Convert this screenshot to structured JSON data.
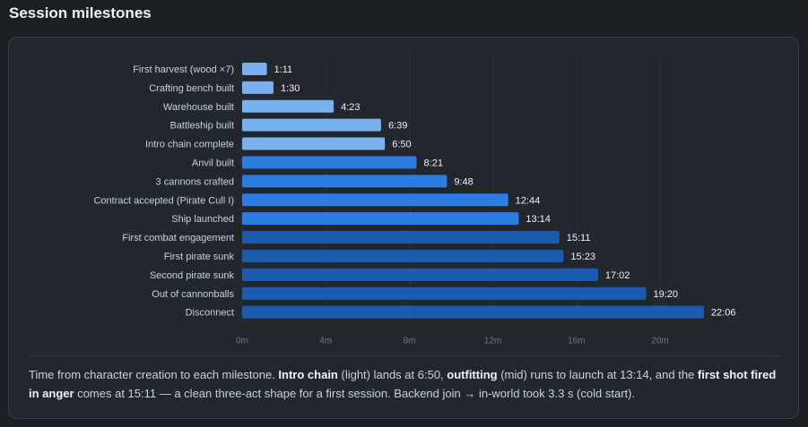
{
  "page": {
    "title": "Session milestones"
  },
  "colors": {
    "light": "#79b0f0",
    "mid": "#2b7de0",
    "dark": "#1c5cb0"
  },
  "chart_data": {
    "type": "bar",
    "orientation": "horizontal",
    "x_unit": "minutes",
    "xlim": [
      0,
      22.5
    ],
    "x_ticks": [
      0,
      4,
      8,
      12,
      16,
      20
    ],
    "x_tick_labels": [
      "0m",
      "4m",
      "8m",
      "12m",
      "16m",
      "20m"
    ],
    "grid": true,
    "categories": [
      "First harvest (wood ×7)",
      "Crafting bench built",
      "Warehouse built",
      "Battleship built",
      "Intro chain complete",
      "Anvil built",
      "3 cannons crafted",
      "Contract accepted (Pirate Cull I)",
      "Ship launched",
      "First combat engagement",
      "First pirate sunk",
      "Second pirate sunk",
      "Out of cannonballs",
      "Disconnect"
    ],
    "values": [
      1.1833,
      1.5,
      4.3833,
      6.65,
      6.8333,
      8.35,
      9.8,
      12.7333,
      13.2333,
      15.1833,
      15.3833,
      17.0333,
      19.3333,
      22.1
    ],
    "value_labels": [
      "1:11",
      "1:30",
      "4:23",
      "6:39",
      "6:50",
      "8:21",
      "9:48",
      "12:44",
      "13:14",
      "15:11",
      "15:23",
      "17:02",
      "19:20",
      "22:06"
    ],
    "phase": [
      "light",
      "light",
      "light",
      "light",
      "light",
      "mid",
      "mid",
      "mid",
      "mid",
      "dark",
      "dark",
      "dark",
      "dark",
      "dark"
    ]
  },
  "caption": {
    "t1": "Time from character creation to each milestone. ",
    "b1": "Intro chain",
    "t2": " (light) lands at 6:50, ",
    "b2": "outfitting",
    "t3": " (mid) runs to launch at 13:14, and the ",
    "b3": "first shot fired in anger",
    "t4": " comes at 15:11 — a clean three-act shape for a first session. Backend join → in-world took 3.3 s (cold start)."
  }
}
